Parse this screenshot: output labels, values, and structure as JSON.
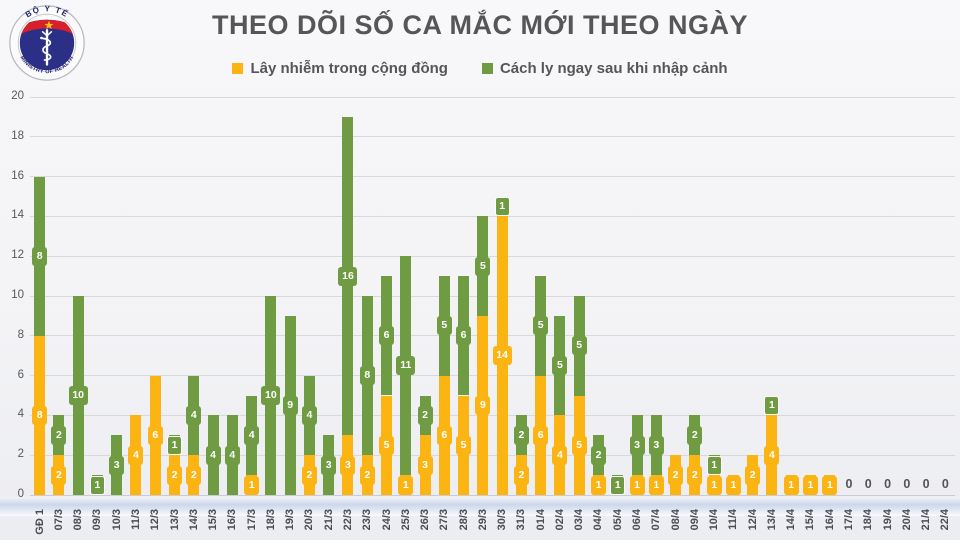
{
  "header": {
    "title": "THEO DÕI SỐ CA MẮC MỚI THEO NGÀY"
  },
  "logo": {
    "top_text": "BỘ Y TẾ",
    "bottom_text": "MINISTRY OF HEALTH",
    "ring_color": "#fbfbfc",
    "navy": "#2b3086",
    "red": "#d6202b",
    "gold": "#f5c318"
  },
  "legend": {
    "items": [
      {
        "label": "Lây nhiễm trong cộng đồng",
        "color": "#fbb411"
      },
      {
        "label": "Cách ly ngay sau khi nhập cảnh",
        "color": "#6f9c42"
      }
    ]
  },
  "chart_data": {
    "type": "bar",
    "stacked": true,
    "title": "THEO DÕI SỐ CA MẮC MỚI THEO NGÀY",
    "xlabel": "",
    "ylabel": "",
    "ylim": [
      0,
      20
    ],
    "yticks": [
      0,
      2,
      4,
      6,
      8,
      10,
      12,
      14,
      16,
      18,
      20
    ],
    "grid": true,
    "legend_position": "top",
    "zero_display": "0",
    "categories": [
      "GĐ 1",
      "07/3",
      "08/3",
      "09/3",
      "10/3",
      "11/3",
      "12/3",
      "13/3",
      "14/3",
      "15/3",
      "16/3",
      "17/3",
      "18/3",
      "19/3",
      "20/3",
      "21/3",
      "22/3",
      "23/3",
      "24/3",
      "25/3",
      "26/3",
      "27/3",
      "28/3",
      "29/3",
      "30/3",
      "31/3",
      "01/4",
      "02/4",
      "03/4",
      "04/4",
      "05/4",
      "06/4",
      "07/4",
      "08/4",
      "09/4",
      "10/4",
      "11/4",
      "12/4",
      "13/4",
      "14/4",
      "15/4",
      "16/4",
      "17/4",
      "18/4",
      "19/4",
      "20/4",
      "21/4",
      "22/4"
    ],
    "series": [
      {
        "name": "Lây nhiễm trong cộng đồng",
        "color": "#fbb411",
        "values": [
          8,
          2,
          0,
          0,
          0,
          4,
          6,
          2,
          2,
          0,
          0,
          1,
          0,
          0,
          2,
          0,
          3,
          2,
          5,
          1,
          3,
          6,
          5,
          9,
          14,
          2,
          6,
          4,
          5,
          1,
          0,
          1,
          1,
          2,
          2,
          1,
          1,
          2,
          4,
          1,
          1,
          1,
          0,
          0,
          0,
          0,
          0,
          0
        ]
      },
      {
        "name": "Cách ly ngay sau khi nhập cảnh",
        "color": "#6f9c42",
        "values": [
          8,
          2,
          10,
          1,
          3,
          0,
          0,
          1,
          4,
          4,
          4,
          4,
          10,
          9,
          4,
          3,
          16,
          8,
          6,
          11,
          2,
          5,
          6,
          5,
          1,
          2,
          5,
          5,
          5,
          2,
          1,
          3,
          3,
          0,
          2,
          1,
          0,
          0,
          1,
          0,
          0,
          0,
          0,
          0,
          0,
          0,
          0,
          0
        ]
      }
    ]
  }
}
